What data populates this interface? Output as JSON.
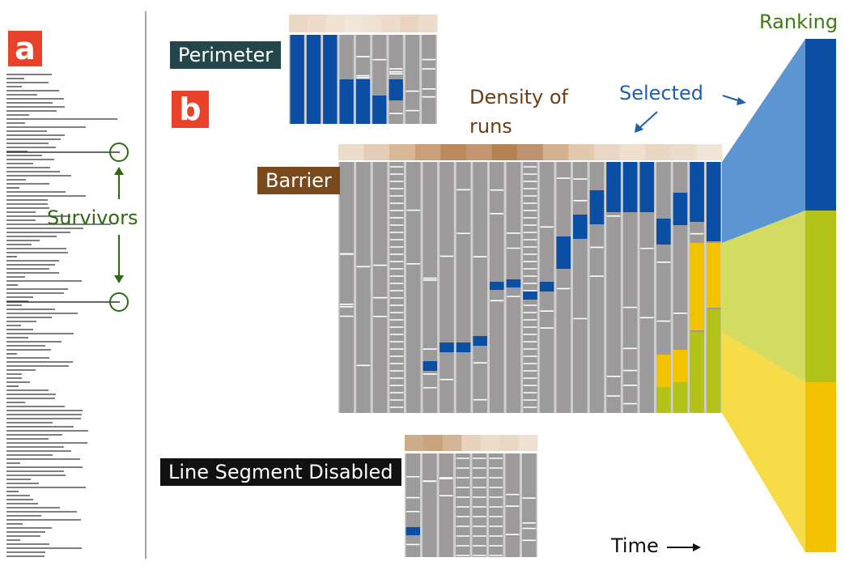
{
  "panels": {
    "a": "a",
    "b": "b"
  },
  "labels": {
    "survivors": "Survivors",
    "perimeter": "Perimeter",
    "barrier": "Barrier",
    "line_segment_disabled": "Line Segment Disabled",
    "density_line1": "Density of",
    "density_line2": "runs",
    "selected": "Selected",
    "ranking": "Ranking",
    "time": "Time"
  },
  "colors": {
    "badge_red": "#e8432a",
    "perimeter_tag": "#24454a",
    "barrier_tag": "#7a4a1c",
    "segment_tag": "#111111",
    "run_gray": "#9c9a9a",
    "selected_blue": "#0a4fa3",
    "yellow": "#f3c200",
    "olive": "#b3c219",
    "survivors_green": "#2d6b12",
    "ranking_green": "#3f7a12",
    "density_text": "#6b3e17",
    "selected_text": "#1f5fae",
    "line_gray": "#555555"
  },
  "ranking_bars": [
    {
      "group": "selected",
      "color": "#0a4fa3"
    },
    {
      "group": "olive",
      "color": "#b3c219"
    },
    {
      "group": "yellow",
      "color": "#f3c200"
    }
  ]
}
